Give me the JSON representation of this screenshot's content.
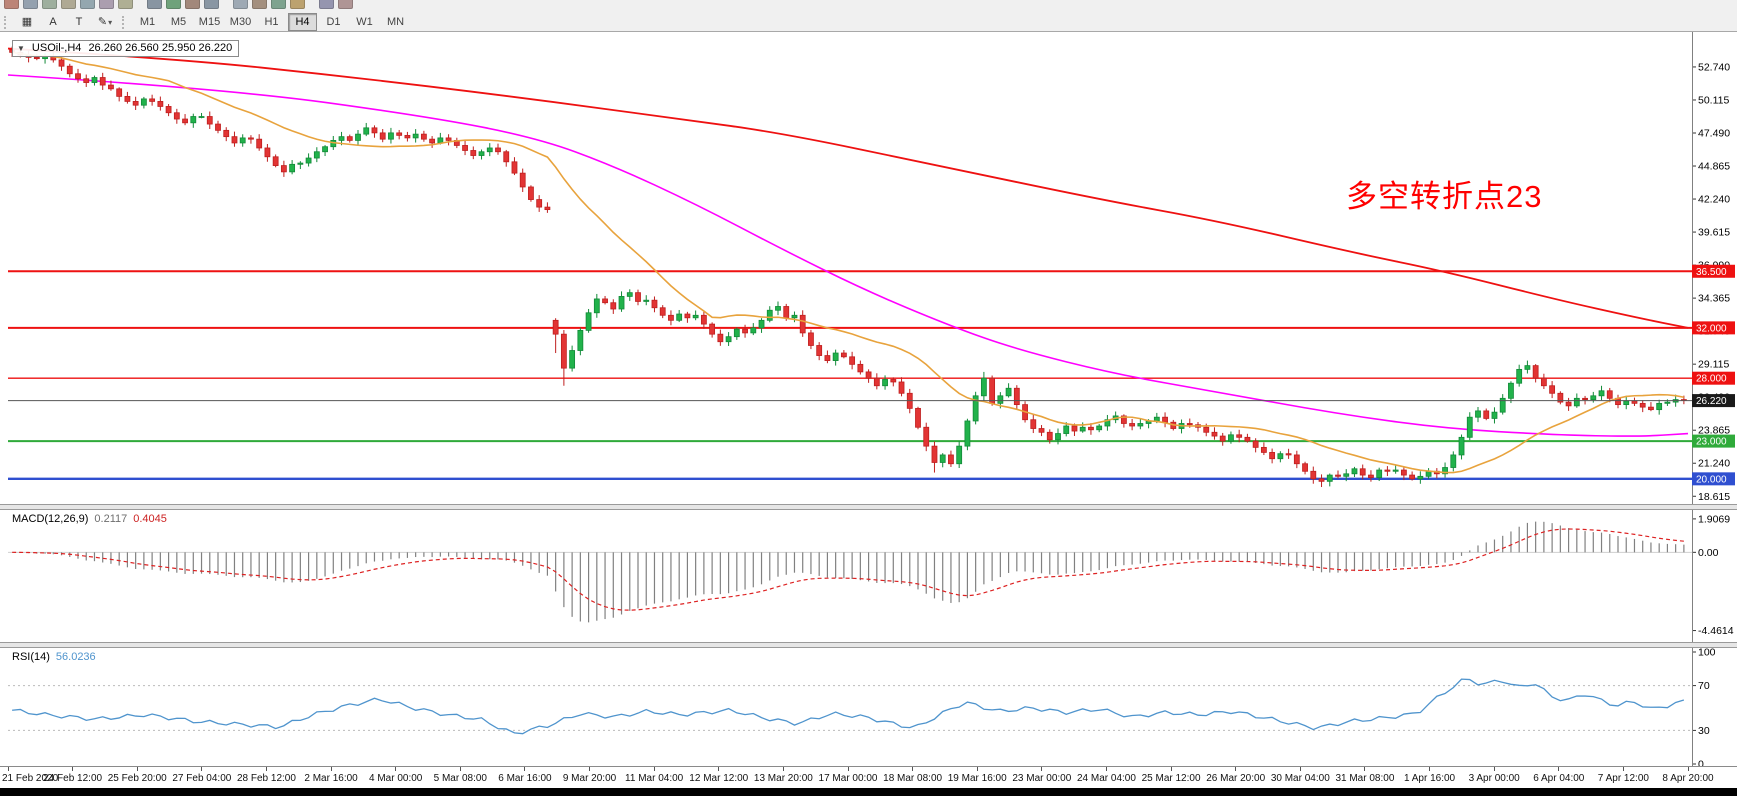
{
  "toolbar": {
    "top_icons": [
      {
        "name": "new-order-icon",
        "color": "#b06a5a"
      },
      {
        "name": "market-watch-icon",
        "color": "#7e8ea0"
      },
      {
        "name": "data-window-icon",
        "color": "#8aa08a"
      },
      {
        "name": "navigator-icon",
        "color": "#a0987e"
      },
      {
        "name": "terminal-icon",
        "color": "#7e96a0"
      },
      {
        "name": "strategy-tester-icon",
        "color": "#9a8aa0"
      },
      {
        "name": "metaeditor-icon",
        "color": "#a0a07e"
      },
      {
        "name": "bars-chart-icon",
        "color": "#6f7f8f"
      },
      {
        "name": "candlestick-chart-icon",
        "color": "#4f8f5f"
      },
      {
        "name": "line-chart-icon",
        "color": "#8f6f5f"
      },
      {
        "name": "zoom-in-icon",
        "color": "#708090"
      },
      {
        "name": "zoom-out-icon",
        "color": "#8a98a6"
      },
      {
        "name": "auto-scroll-icon",
        "color": "#907862"
      },
      {
        "name": "chart-shift-icon",
        "color": "#629078"
      },
      {
        "name": "indicators-icon",
        "color": "#b08f4f"
      },
      {
        "name": "periods-icon",
        "color": "#7f7f9f"
      },
      {
        "name": "templates-icon",
        "color": "#9f7f7f"
      }
    ],
    "tools": [
      {
        "name": "grid-icon",
        "glyph": "▦"
      },
      {
        "name": "text-tool-button",
        "glyph": "A"
      },
      {
        "name": "label-tool-button",
        "glyph": "T"
      },
      {
        "name": "draw-tools-button",
        "glyph": "✎",
        "dropdown": "▾"
      }
    ],
    "timeframes": [
      "M1",
      "M5",
      "M15",
      "M30",
      "H1",
      "H4",
      "D1",
      "W1",
      "MN"
    ],
    "active_timeframe": "H4"
  },
  "symbol_box": {
    "dropdown_glyph": "▼",
    "symbol": "USOil-,H4",
    "ohlc": "26.260 26.560 25.950 26.220"
  },
  "annotation": {
    "text": "多空转折点23",
    "color": "#ff0000"
  },
  "indicators": {
    "macd": {
      "title": "MACD(12,26,9)",
      "main_value": "0.2117",
      "signal_value": "0.4045",
      "axis_labels": [
        {
          "value": 1.9069,
          "label": "1.9069"
        },
        {
          "value": 0,
          "label": "0.00"
        },
        {
          "value": -4.4614,
          "label": "-4.4614"
        }
      ]
    },
    "rsi": {
      "title": "RSI(14)",
      "value": "56.0236",
      "levels": [
        70,
        30
      ],
      "axis_labels": [
        {
          "value": 100,
          "label": "100"
        },
        {
          "value": 70,
          "label": "70"
        },
        {
          "value": 30,
          "label": "30"
        },
        {
          "value": 0,
          "label": "0"
        }
      ]
    }
  },
  "chart_data": {
    "type": "candlestick",
    "symbol": "USOil-",
    "timeframe": "H4",
    "title": "USOil- H4 candlestick chart with MACD and RSI",
    "y_range": [
      18.0,
      55.2
    ],
    "price_ticks": [
      52.74,
      50.115,
      47.49,
      44.865,
      42.24,
      39.615,
      36.99,
      34.365,
      31.74,
      29.115,
      26.49,
      23.865,
      21.24,
      18.615
    ],
    "first_open": 54.1,
    "closes": [
      53.9,
      53.7,
      53.5,
      53.4,
      53.6,
      53.3,
      52.8,
      52.2,
      51.8,
      51.5,
      51.9,
      51.3,
      51.0,
      50.4,
      50.0,
      49.7,
      50.2,
      50.0,
      49.6,
      49.1,
      48.6,
      48.3,
      48.8,
      48.8,
      48.2,
      47.7,
      47.2,
      46.7,
      47.1,
      47.0,
      46.3,
      45.6,
      44.9,
      44.4,
      45.0,
      45.1,
      45.5,
      46.0,
      46.4,
      46.9,
      47.2,
      46.9,
      47.4,
      47.9,
      47.5,
      47.0,
      47.5,
      47.3,
      47.1,
      47.4,
      47.0,
      46.7,
      47.1,
      46.9,
      46.5,
      46.1,
      45.7,
      46.0,
      46.3,
      46.0,
      45.2,
      44.3,
      43.2,
      42.2,
      41.6,
      41.4,
      31.5,
      28.8,
      30.2,
      31.8,
      33.2,
      34.3,
      34.0,
      33.5,
      34.5,
      34.8,
      34.1,
      34.2,
      33.6,
      33.0,
      32.6,
      33.1,
      32.8,
      33.0,
      32.3,
      31.5,
      30.9,
      31.3,
      31.9,
      31.6,
      32.0,
      32.6,
      33.4,
      33.7,
      32.8,
      33.0,
      31.6,
      30.6,
      29.8,
      29.4,
      30.0,
      29.7,
      29.1,
      28.5,
      28.0,
      27.4,
      27.9,
      27.7,
      26.8,
      25.6,
      24.1,
      22.6,
      21.3,
      21.9,
      21.2,
      22.6,
      24.6,
      26.6,
      28.0,
      26.0,
      26.6,
      27.2,
      25.9,
      24.7,
      24.0,
      23.7,
      23.1,
      23.6,
      24.2,
      23.8,
      24.1,
      23.9,
      24.2,
      24.7,
      25.0,
      24.4,
      24.2,
      24.4,
      24.6,
      24.9,
      24.5,
      24.0,
      24.4,
      24.3,
      24.1,
      23.7,
      23.4,
      23.0,
      23.5,
      23.3,
      23.0,
      22.5,
      22.1,
      21.6,
      22.0,
      21.9,
      21.2,
      20.6,
      20.0,
      19.8,
      20.3,
      20.2,
      20.4,
      20.8,
      20.3,
      20.1,
      20.7,
      20.6,
      20.7,
      20.3,
      20.0,
      20.2,
      20.6,
      20.4,
      20.9,
      21.9,
      23.3,
      24.9,
      25.4,
      24.8,
      25.3,
      26.4,
      27.6,
      28.7,
      29.0,
      28.0,
      27.4,
      26.8,
      26.1,
      25.8,
      26.4,
      26.3,
      26.6,
      27.0,
      26.4,
      25.9,
      26.2,
      26.0,
      25.7,
      25.5,
      26.0,
      26.1,
      26.3,
      26.22
    ],
    "bar_overrides": {
      "66": {
        "open": 32.6,
        "low": 30.0
      },
      "67": {
        "low": 27.4
      },
      "112": {
        "low": 20.5
      },
      "118": {
        "high": 28.5
      },
      "159": {
        "low": 19.35
      },
      "184": {
        "high": 29.4
      }
    },
    "up_color": "#21b24b",
    "up_stroke": "#128a38",
    "down_color": "#e23434",
    "down_stroke": "#bf1f1f",
    "overlays": {
      "ma_fast": {
        "kind": "sma",
        "window": 20,
        "color": "#e8a33d"
      },
      "ma_mid": {
        "color": "#ff00ff",
        "keypoints": [
          [
            0,
            52.1
          ],
          [
            0.13,
            51.0
          ],
          [
            0.25,
            48.8
          ],
          [
            0.315,
            47.1
          ],
          [
            0.36,
            44.9
          ],
          [
            0.41,
            41.8
          ],
          [
            0.46,
            38.3
          ],
          [
            0.51,
            35.0
          ],
          [
            0.56,
            32.2
          ],
          [
            0.6,
            30.3
          ],
          [
            0.66,
            28.3
          ],
          [
            0.72,
            26.9
          ],
          [
            0.79,
            25.2
          ],
          [
            0.855,
            24.0
          ],
          [
            0.92,
            23.5
          ],
          [
            0.97,
            23.35
          ],
          [
            1,
            23.6
          ]
        ]
      },
      "ma_slow": {
        "color": "#ee1111",
        "keypoints": [
          [
            0,
            54.2
          ],
          [
            0.1,
            53.4
          ],
          [
            0.2,
            52.0
          ],
          [
            0.3,
            50.4
          ],
          [
            0.4,
            48.6
          ],
          [
            0.46,
            47.5
          ],
          [
            0.55,
            45.0
          ],
          [
            0.65,
            42.2
          ],
          [
            0.72,
            40.5
          ],
          [
            0.8,
            38.0
          ],
          [
            0.855,
            36.5
          ],
          [
            0.92,
            34.3
          ],
          [
            0.97,
            32.8
          ],
          [
            1,
            32.0
          ]
        ]
      }
    },
    "horizontal_lines": [
      {
        "value": 36.5,
        "label": "36.500",
        "color": "#ee1111",
        "width": 2
      },
      {
        "value": 32.0,
        "label": "32.000",
        "color": "#ee1111",
        "width": 2
      },
      {
        "value": 28.0,
        "label": "28.000",
        "color": "#ee1111",
        "width": 1.4
      },
      {
        "value": 23.0,
        "label": "23.000",
        "color": "#2faa3a",
        "width": 2
      },
      {
        "value": 20.0,
        "label": "20.000",
        "color": "#2f4fd0",
        "width": 2.4
      }
    ],
    "current_price": {
      "value": 26.22,
      "label": "26.220",
      "line_color": "#555555",
      "tag_bg": "#1a1a1a"
    },
    "macd": {
      "fast": 12,
      "slow": 26,
      "signal": 9,
      "range": [
        -5.0,
        2.3
      ],
      "hist_color": "#808080",
      "signal_color": "#dd2222"
    },
    "rsi": {
      "period": 14,
      "range": [
        0,
        100
      ],
      "color": "#4f94cd",
      "keypoints": [
        [
          0,
          48
        ],
        [
          0.02,
          44
        ],
        [
          0.05,
          40
        ],
        [
          0.08,
          44
        ],
        [
          0.11,
          38
        ],
        [
          0.14,
          35
        ],
        [
          0.16,
          33
        ],
        [
          0.18,
          44
        ],
        [
          0.2,
          52
        ],
        [
          0.22,
          58
        ],
        [
          0.24,
          50
        ],
        [
          0.26,
          44
        ],
        [
          0.28,
          40
        ],
        [
          0.3,
          27
        ],
        [
          0.32,
          34
        ],
        [
          0.34,
          45
        ],
        [
          0.36,
          42
        ],
        [
          0.38,
          47
        ],
        [
          0.4,
          44
        ],
        [
          0.43,
          48
        ],
        [
          0.45,
          41
        ],
        [
          0.47,
          36
        ],
        [
          0.49,
          45
        ],
        [
          0.51,
          42
        ],
        [
          0.53,
          35
        ],
        [
          0.54,
          32
        ],
        [
          0.56,
          48
        ],
        [
          0.57,
          55
        ],
        [
          0.59,
          47
        ],
        [
          0.61,
          50
        ],
        [
          0.63,
          46
        ],
        [
          0.65,
          49
        ],
        [
          0.67,
          42
        ],
        [
          0.69,
          46
        ],
        [
          0.71,
          44
        ],
        [
          0.73,
          47
        ],
        [
          0.75,
          41
        ],
        [
          0.77,
          35
        ],
        [
          0.78,
          32
        ],
        [
          0.8,
          38
        ],
        [
          0.82,
          41
        ],
        [
          0.84,
          45
        ],
        [
          0.855,
          62
        ],
        [
          0.87,
          77
        ],
        [
          0.88,
          70
        ],
        [
          0.89,
          76
        ],
        [
          0.9,
          68
        ],
        [
          0.91,
          73
        ],
        [
          0.92,
          61
        ],
        [
          0.93,
          56
        ],
        [
          0.94,
          63
        ],
        [
          0.95,
          57
        ],
        [
          0.96,
          52
        ],
        [
          0.97,
          56
        ],
        [
          0.98,
          49
        ],
        [
          0.99,
          52
        ],
        [
          1,
          56
        ]
      ]
    },
    "x_labels": [
      "21 Feb 2020",
      "24 Feb 12:00",
      "25 Feb 20:00",
      "27 Feb 04:00",
      "28 Feb 12:00",
      "2 Mar 16:00",
      "4 Mar 00:00",
      "5 Mar 08:00",
      "6 Mar 16:00",
      "9 Mar 20:00",
      "11 Mar 04:00",
      "12 Mar 12:00",
      "13 Mar 20:00",
      "17 Mar 00:00",
      "18 Mar 08:00",
      "19 Mar 16:00",
      "23 Mar 00:00",
      "24 Mar 04:00",
      "25 Mar 12:00",
      "26 Mar 20:00",
      "30 Mar 04:00",
      "31 Mar 08:00",
      "1 Apr 16:00",
      "3 Apr 00:00",
      "6 Apr 04:00",
      "7 Apr 12:00",
      "8 Apr 20:00"
    ]
  }
}
